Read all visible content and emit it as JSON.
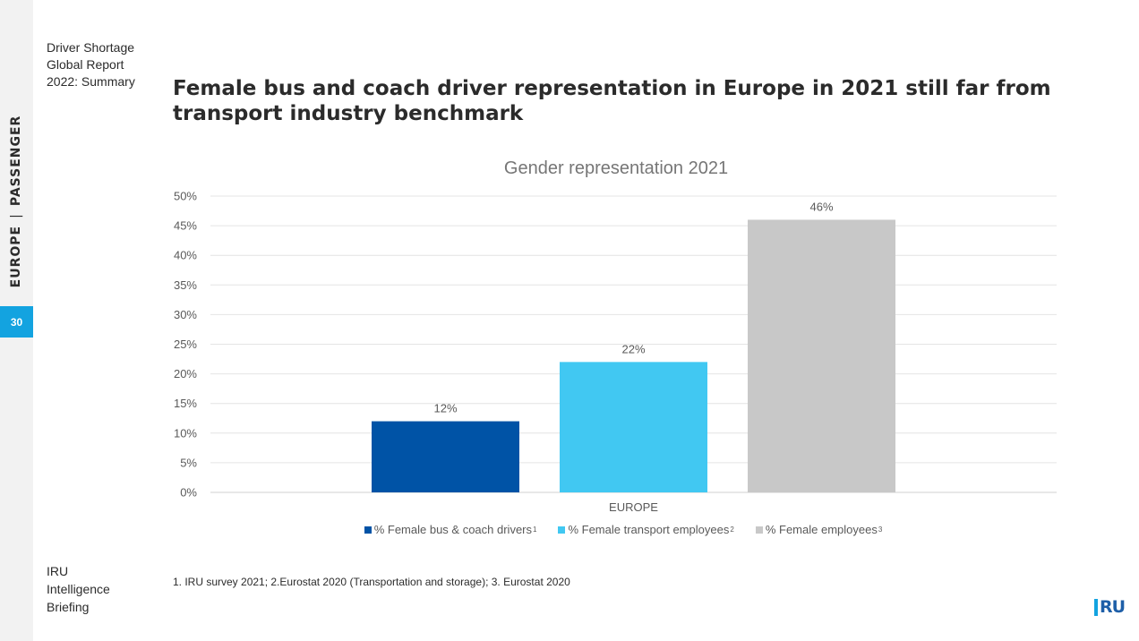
{
  "sidebar": {
    "section_left": "EUROPE",
    "separator": "|",
    "section_right": "PASSENGER",
    "page_number": "30"
  },
  "report": {
    "title_lines": [
      "Driver Shortage",
      "Global Report",
      "2022: Summary"
    ]
  },
  "headline": "Female bus and coach driver representation in Europe in 2021 still far from transport industry benchmark",
  "briefing_lines": [
    "IRU",
    "Intelligence",
    "Briefing"
  ],
  "footnote": "1. IRU survey 2021; 2.Eurostat 2020 (Transportation and storage); 3. Eurostat 2020",
  "logo_text": "RU",
  "chart_data": {
    "type": "bar",
    "title": "Gender representation 2021",
    "categories": [
      "EUROPE"
    ],
    "series": [
      {
        "name": "% Female bus & coach drivers",
        "sup": "1",
        "values": [
          12
        ],
        "label": "12%",
        "color": "#0053a6"
      },
      {
        "name": "% Female transport employees",
        "sup": "2",
        "values": [
          22
        ],
        "label": "22%",
        "color": "#41c8f2"
      },
      {
        "name": "% Female employees",
        "sup": "3",
        "values": [
          46
        ],
        "label": "46%",
        "color": "#c8c8c8"
      }
    ],
    "yticks": [
      "0%",
      "5%",
      "10%",
      "15%",
      "20%",
      "25%",
      "30%",
      "35%",
      "40%",
      "45%",
      "50%"
    ],
    "ylim": [
      0,
      50
    ],
    "grid": true,
    "legend": "bottom"
  }
}
